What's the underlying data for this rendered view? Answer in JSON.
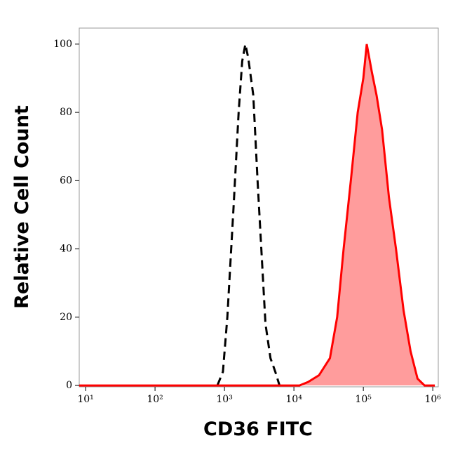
{
  "chart_data": {
    "type": "line",
    "xlabel": "CD36 FITC",
    "ylabel": "Relative Cell Count",
    "xscale": "log",
    "xlim": [
      8.1,
      1200000
    ],
    "ylim": [
      -0.4,
      104.7
    ],
    "xticks": [
      {
        "value": 10,
        "label": "10¹"
      },
      {
        "value": 100,
        "label": "10²"
      },
      {
        "value": 1000,
        "label": "10³"
      },
      {
        "value": 10000,
        "label": "10⁴"
      },
      {
        "value": 100000,
        "label": "10⁵"
      },
      {
        "value": 1000000,
        "label": "10⁶"
      }
    ],
    "yticks": [
      0,
      20,
      40,
      60,
      80,
      100
    ],
    "series": [
      {
        "color": "#000000",
        "dashed": true,
        "filled": false,
        "x": [
          790,
          950,
          1100,
          1350,
          1600,
          1800,
          2000,
          2200,
          2600,
          3000,
          3500,
          3900,
          4600,
          5400,
          6200
        ],
        "values": [
          0,
          4,
          20,
          52,
          80,
          95,
          100,
          96,
          85,
          60,
          35,
          18,
          8,
          4,
          0
        ]
      },
      {
        "color": "#ff0000",
        "fill": "#ff9c9c",
        "dashed": false,
        "filled": true,
        "x": [
          8.1,
          1000,
          12000,
          16000,
          23000,
          33000,
          42000,
          52000,
          66000,
          83000,
          100000,
          112000,
          132000,
          155000,
          186000,
          234000,
          295000,
          380000,
          479000,
          603000,
          760000,
          1070000
        ],
        "values": [
          0,
          0,
          0,
          1,
          3,
          8,
          20,
          40,
          60,
          80,
          90,
          100,
          92,
          85,
          75,
          55,
          40,
          22,
          10,
          2,
          0,
          0
        ]
      }
    ]
  }
}
